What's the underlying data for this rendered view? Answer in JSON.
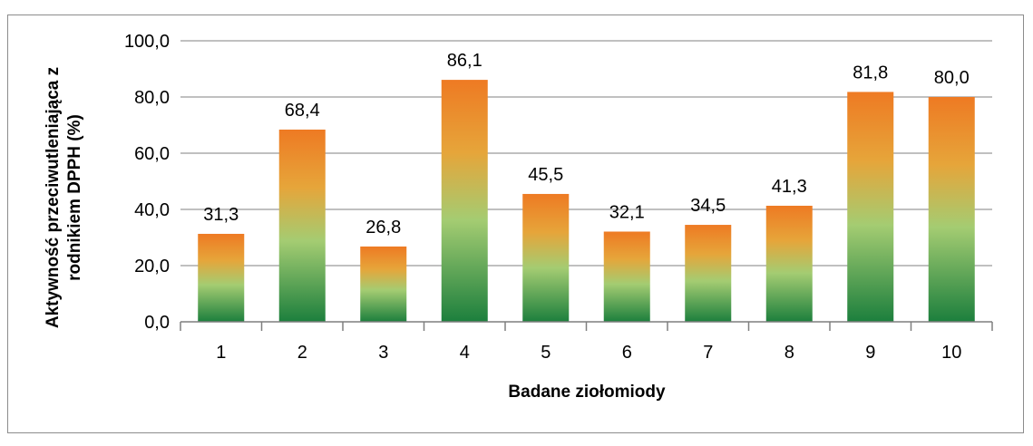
{
  "chart_data": {
    "type": "bar",
    "categories": [
      "1",
      "2",
      "3",
      "4",
      "5",
      "6",
      "7",
      "8",
      "9",
      "10"
    ],
    "values": [
      31.3,
      68.4,
      26.8,
      86.1,
      45.5,
      32.1,
      34.5,
      41.3,
      81.8,
      80.0
    ],
    "value_labels": [
      "31,3",
      "68,4",
      "26,8",
      "86,1",
      "45,5",
      "32,1",
      "34,5",
      "41,3",
      "81,8",
      "80,0"
    ],
    "y_ticks": [
      "0,0",
      "20,0",
      "40,0",
      "60,0",
      "80,0",
      "100,0"
    ],
    "ylim": [
      0,
      100
    ],
    "title": "",
    "xlabel": "Badane ziołomiody",
    "ylabel_lines": [
      "Aktywność przeciwutleniająca z",
      "rodnikiem DPPH (%)"
    ],
    "grid": true,
    "legend": "none",
    "colors": {
      "bar_top": "#ee7a23",
      "bar_mid_upper": "#e6a53a",
      "bar_mid": "#a4cc72",
      "bar_bottom": "#1c7f3d",
      "grid": "#9a9a9a",
      "axis": "#7f7f7f"
    }
  }
}
